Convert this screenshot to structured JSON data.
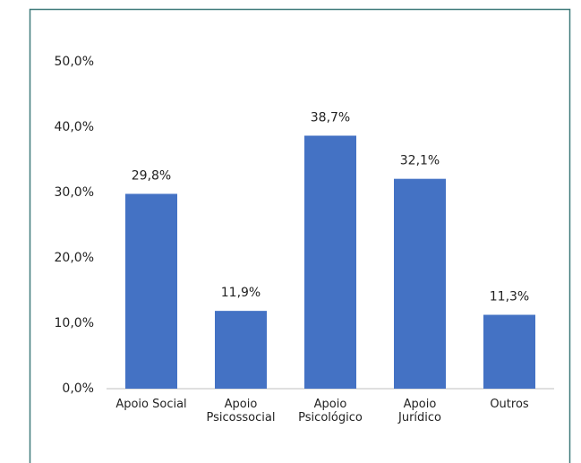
{
  "chart_data": {
    "type": "bar",
    "categories": [
      "Apoio Social",
      "Apoio\nPsicossocial",
      "Apoio\nPsicológico",
      "Apoio\nJurídico",
      "Outros"
    ],
    "values": [
      29.8,
      11.9,
      38.7,
      32.1,
      11.3
    ],
    "value_labels": [
      "29,8%",
      "11,9%",
      "38,7%",
      "32,1%",
      "11,3%"
    ],
    "color": "#4472c4",
    "ylim": [
      0,
      50
    ],
    "yticks": [
      {
        "value": 0,
        "label": "0,0%"
      },
      {
        "value": 10,
        "label": "10,0%"
      },
      {
        "value": 20,
        "label": "20,0%"
      },
      {
        "value": 30,
        "label": "30,0%"
      },
      {
        "value": 40,
        "label": "40,0%"
      },
      {
        "value": 50,
        "label": "50,0%"
      }
    ],
    "grid": false
  }
}
